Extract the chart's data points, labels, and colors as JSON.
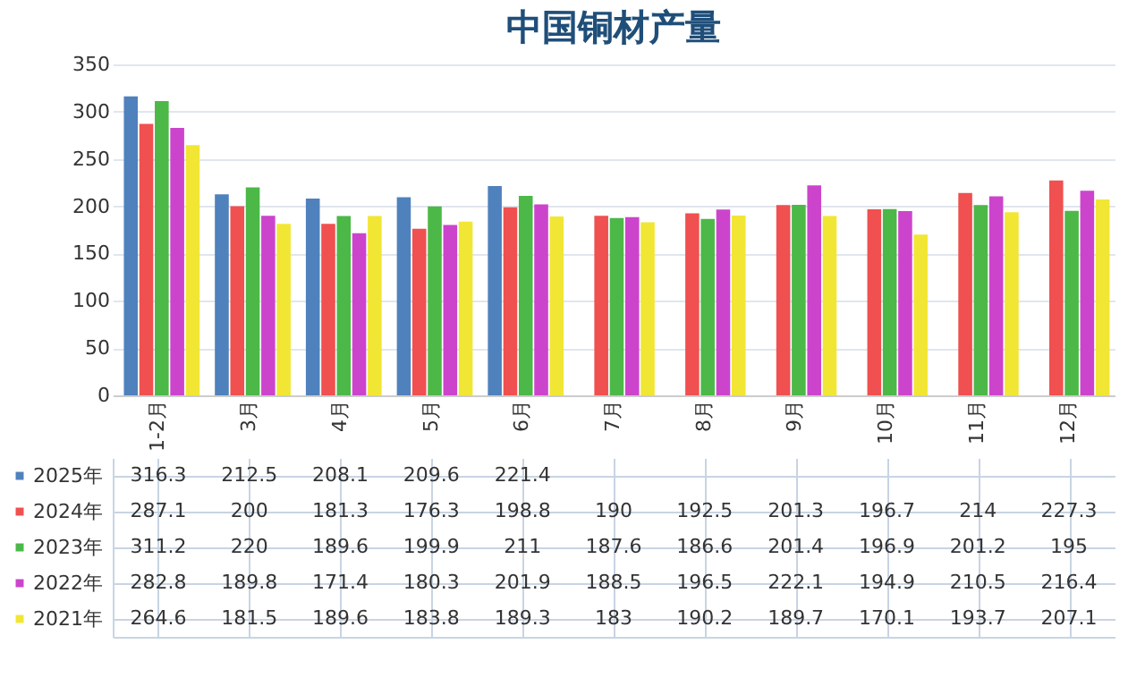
{
  "chart_data": {
    "type": "bar",
    "title": "中国铜材产量",
    "categories": [
      "1-2月",
      "3月",
      "4月",
      "5月",
      "6月",
      "7月",
      "8月",
      "9月",
      "10月",
      "11月",
      "12月"
    ],
    "series": [
      {
        "name": "2025年",
        "color": "#4f81bd",
        "values": [
          316.3,
          212.5,
          208.1,
          209.6,
          221.4,
          null,
          null,
          null,
          null,
          null,
          null
        ]
      },
      {
        "name": "2024年",
        "color": "#f05050",
        "values": [
          287.1,
          200,
          181.3,
          176.3,
          198.8,
          190,
          192.5,
          201.3,
          196.7,
          214,
          227.3
        ]
      },
      {
        "name": "2023年",
        "color": "#4cb848",
        "values": [
          311.2,
          220,
          189.6,
          199.9,
          211,
          187.6,
          186.6,
          201.4,
          196.9,
          201.2,
          195
        ]
      },
      {
        "name": "2022年",
        "color": "#cc44cc",
        "values": [
          282.8,
          189.8,
          171.4,
          180.3,
          201.9,
          188.5,
          196.5,
          222.1,
          194.9,
          210.5,
          216.4
        ]
      },
      {
        "name": "2021年",
        "color": "#f2e635",
        "values": [
          264.6,
          181.5,
          189.6,
          183.8,
          189.3,
          183,
          190.2,
          189.7,
          170.1,
          193.7,
          207.1
        ]
      }
    ],
    "ylim": [
      0,
      350
    ],
    "yticks": [
      0,
      50,
      100,
      150,
      200,
      250,
      300,
      350
    ],
    "grid": "y",
    "data_labels": true,
    "legend": "bottom left"
  }
}
